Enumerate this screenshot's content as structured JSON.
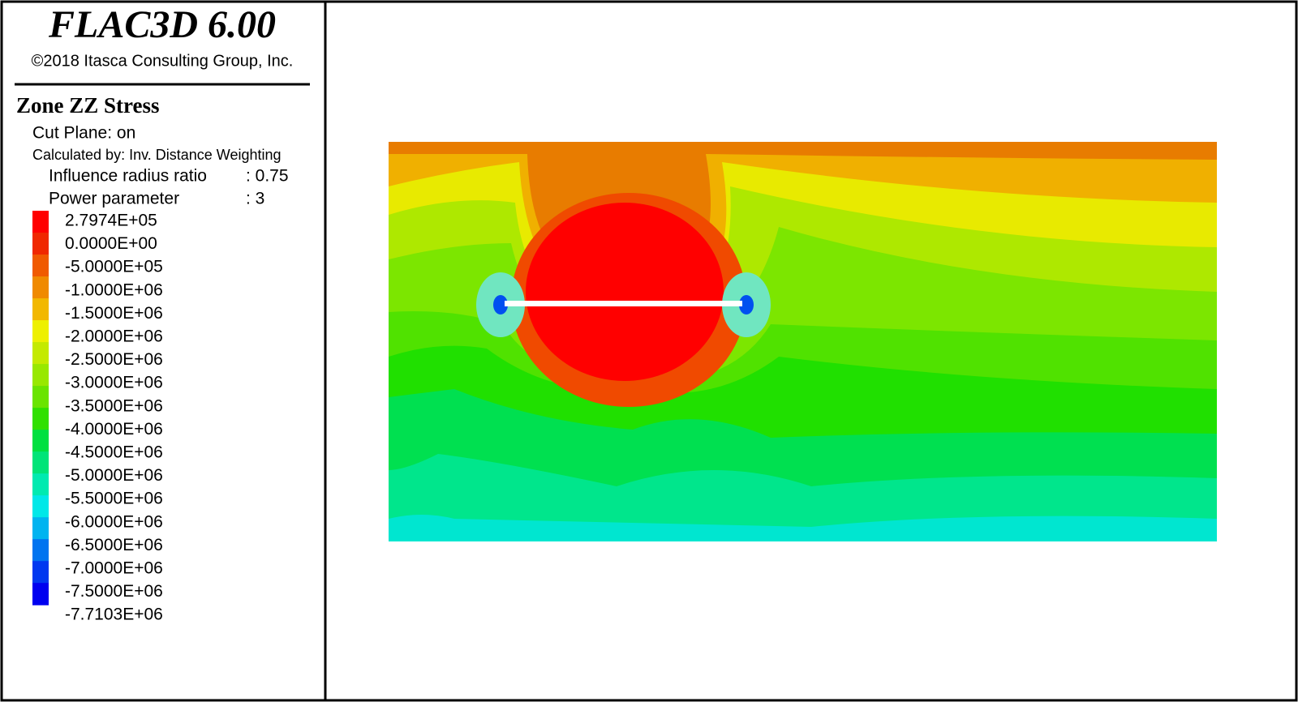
{
  "header": {
    "title": "FLAC3D 6.00",
    "copyright": "©2018 Itasca Consulting Group, Inc."
  },
  "legend": {
    "title": "Zone ZZ Stress",
    "lines": [
      "Cut Plane: on",
      "Calculated by: Inv. Distance Weighting"
    ],
    "params": [
      {
        "name": "Influence radius ratio",
        "value": ": 0.75"
      },
      {
        "name": "Power parameter",
        "value": ": 3"
      }
    ],
    "labels": [
      "2.7974E+05",
      "0.0000E+00",
      "-5.0000E+05",
      "-1.0000E+06",
      "-1.5000E+06",
      "-2.0000E+06",
      "-2.5000E+06",
      "-3.0000E+06",
      "-3.5000E+06",
      "-4.0000E+06",
      "-4.5000E+06",
      "-5.0000E+06",
      "-5.5000E+06",
      "-6.0000E+06",
      "-6.5000E+06",
      "-7.0000E+06",
      "-7.5000E+06",
      "-7.7103E+06"
    ],
    "colors": [
      "#ff0000",
      "#f02800",
      "#f05a00",
      "#f08a00",
      "#f2b800",
      "#eef000",
      "#c4ea00",
      "#98e800",
      "#6ae400",
      "#30e000",
      "#00e040",
      "#00e478",
      "#00eab0",
      "#00e8e8",
      "#00b4f0",
      "#0074f0",
      "#0038f0",
      "#0000f0"
    ]
  }
}
